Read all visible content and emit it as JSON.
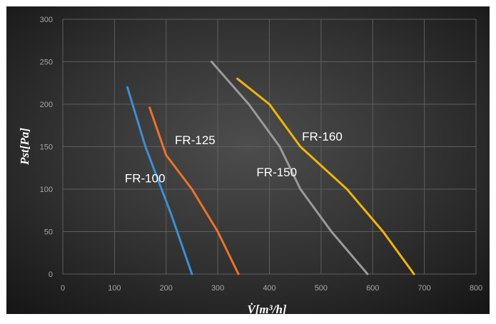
{
  "chart_data": {
    "type": "line",
    "title": "",
    "xlabel": "V̇[m³/h]",
    "ylabel": "Pst[Pa]",
    "xlim": [
      0,
      800
    ],
    "ylim": [
      0,
      300
    ],
    "x_ticks": [
      "0",
      "100",
      "200",
      "300",
      "400",
      "500",
      "600",
      "700",
      "800"
    ],
    "y_ticks": [
      "0",
      "50",
      "100",
      "150",
      "200",
      "250",
      "300"
    ],
    "grid": true,
    "legend": "none (inline labels)",
    "series": [
      {
        "name": "FR-100",
        "color": "#3b8fd6",
        "points": [
          [
            125,
            220
          ],
          [
            160,
            150
          ],
          [
            210,
            70
          ],
          [
            250,
            0
          ]
        ],
        "label_at": [
          120,
          113
        ]
      },
      {
        "name": "FR-125",
        "color": "#ed7327",
        "points": [
          [
            168,
            196
          ],
          [
            200,
            140
          ],
          [
            250,
            100
          ],
          [
            300,
            50
          ],
          [
            340,
            0
          ]
        ],
        "label_at": [
          217,
          158
        ]
      },
      {
        "name": "FR-150",
        "color": "#9a9a9a",
        "points": [
          [
            288,
            250
          ],
          [
            360,
            200
          ],
          [
            420,
            150
          ],
          [
            460,
            100
          ],
          [
            520,
            50
          ],
          [
            590,
            0
          ]
        ],
        "label_at": [
          375,
          120
        ]
      },
      {
        "name": "FR-160",
        "color": "#f2b40c",
        "points": [
          [
            338,
            230
          ],
          [
            400,
            200
          ],
          [
            460,
            150
          ],
          [
            550,
            100
          ],
          [
            620,
            50
          ],
          [
            680,
            0
          ]
        ],
        "label_at": [
          463,
          162
        ]
      }
    ]
  }
}
